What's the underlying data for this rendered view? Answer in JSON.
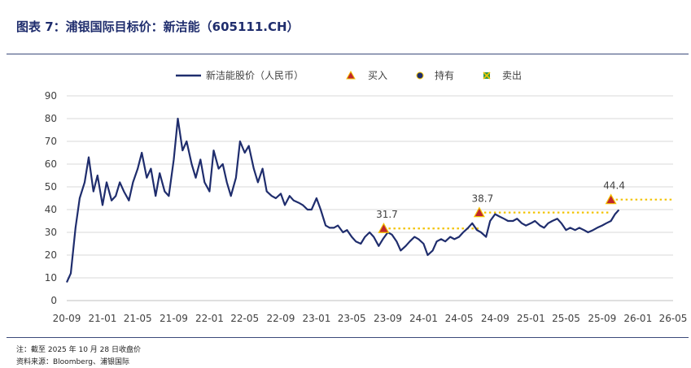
{
  "header": {
    "title": "图表 7：浦银国际目标价：新洁能（605111.CH）"
  },
  "footer": {
    "note": "注：截至 2025 年 10 月 28 日收盘价",
    "source": "资料来源：Bloomberg、浦银国际"
  },
  "colors": {
    "line": "#1f2d6d",
    "target": "#f2c200",
    "buy_fill": "#c0262d",
    "hold_fill": "#1f2d6d",
    "sell_fill": "#2e9a47",
    "marker_edge": "#f2c200",
    "grid": "#d9d9d9"
  },
  "chart_data": {
    "type": "line",
    "title": "",
    "xlabel": "",
    "ylabel": "",
    "ylim": [
      0,
      90
    ],
    "yticks": [
      "0",
      "10",
      "20",
      "30",
      "40",
      "50",
      "60",
      "70",
      "80",
      "90"
    ],
    "xticks": [
      "20-09",
      "21-01",
      "21-05",
      "21-09",
      "22-01",
      "22-05",
      "22-09",
      "23-01",
      "23-05",
      "23-09",
      "24-01",
      "24-05",
      "24-09",
      "25-01",
      "25-05",
      "25-09",
      "26-01",
      "26-05"
    ],
    "grid": true,
    "legend_position": "top",
    "legend": {
      "price": "新洁能股价（人民币）",
      "buy": "买入",
      "hold": "持有",
      "sell": "卖出"
    },
    "series": [
      {
        "name": "新洁能股价（人民币）",
        "x": [
          "2020-09-01",
          "2020-09-15",
          "2020-10-01",
          "2020-10-15",
          "2020-11-01",
          "2020-11-15",
          "2020-12-01",
          "2020-12-15",
          "2021-01-01",
          "2021-01-15",
          "2021-02-01",
          "2021-02-15",
          "2021-03-01",
          "2021-03-15",
          "2021-04-01",
          "2021-04-15",
          "2021-05-01",
          "2021-05-15",
          "2021-06-01",
          "2021-06-15",
          "2021-07-01",
          "2021-07-15",
          "2021-08-01",
          "2021-08-15",
          "2021-09-01",
          "2021-09-15",
          "2021-10-01",
          "2021-10-15",
          "2021-11-01",
          "2021-11-15",
          "2021-12-01",
          "2021-12-15",
          "2022-01-01",
          "2022-01-15",
          "2022-02-01",
          "2022-02-15",
          "2022-03-01",
          "2022-03-15",
          "2022-04-01",
          "2022-04-15",
          "2022-05-01",
          "2022-05-15",
          "2022-06-01",
          "2022-06-15",
          "2022-07-01",
          "2022-07-15",
          "2022-08-01",
          "2022-08-15",
          "2022-09-01",
          "2022-09-15",
          "2022-10-01",
          "2022-10-15",
          "2022-11-01",
          "2022-11-15",
          "2022-12-01",
          "2022-12-15",
          "2023-01-01",
          "2023-01-15",
          "2023-02-01",
          "2023-02-15",
          "2023-03-01",
          "2023-03-15",
          "2023-04-01",
          "2023-04-15",
          "2023-05-01",
          "2023-05-15",
          "2023-06-01",
          "2023-06-15",
          "2023-07-01",
          "2023-07-15",
          "2023-08-01",
          "2023-08-15",
          "2023-09-01",
          "2023-09-15",
          "2023-10-01",
          "2023-10-15",
          "2023-11-01",
          "2023-11-15",
          "2023-12-01",
          "2023-12-15",
          "2024-01-01",
          "2024-01-15",
          "2024-02-01",
          "2024-02-15",
          "2024-03-01",
          "2024-03-15",
          "2024-04-01",
          "2024-04-15",
          "2024-05-01",
          "2024-05-15",
          "2024-06-01",
          "2024-06-15",
          "2024-07-01",
          "2024-07-15",
          "2024-08-01",
          "2024-08-15",
          "2024-09-01",
          "2024-09-15",
          "2024-10-01",
          "2024-10-15",
          "2024-11-01",
          "2024-11-15",
          "2024-12-01",
          "2024-12-15",
          "2025-01-01",
          "2025-01-15",
          "2025-02-01",
          "2025-02-15",
          "2025-03-01",
          "2025-03-15",
          "2025-04-01",
          "2025-04-15",
          "2025-05-01",
          "2025-05-15",
          "2025-06-01",
          "2025-06-15",
          "2025-07-01",
          "2025-07-15",
          "2025-08-01",
          "2025-08-15",
          "2025-09-01",
          "2025-09-15",
          "2025-10-01",
          "2025-10-15",
          "2025-10-28"
        ],
        "values": [
          8,
          12,
          32,
          45,
          52,
          63,
          48,
          55,
          42,
          52,
          44,
          46,
          52,
          48,
          44,
          52,
          58,
          65,
          54,
          58,
          46,
          56,
          48,
          46,
          62,
          80,
          66,
          70,
          60,
          54,
          62,
          52,
          48,
          66,
          58,
          60,
          52,
          46,
          54,
          70,
          65,
          68,
          58,
          52,
          58,
          48,
          46,
          45,
          47,
          42,
          46,
          44,
          43,
          42,
          40,
          40,
          45,
          40,
          33,
          32,
          32,
          33,
          30,
          31,
          28,
          26,
          25,
          28,
          30,
          28,
          24,
          27,
          30,
          29,
          26,
          22,
          24,
          26,
          28,
          27,
          25,
          20,
          22,
          26,
          27,
          26,
          28,
          27,
          28,
          30,
          32,
          34,
          31,
          30,
          28,
          35,
          38,
          37,
          36,
          35,
          35,
          36,
          34,
          33,
          34,
          35,
          33,
          32,
          34,
          35,
          36,
          34,
          31,
          32,
          31,
          32,
          31,
          30,
          31,
          32,
          33,
          34,
          35,
          38,
          39.9
        ]
      },
      {
        "name": "买入",
        "type": "scatter",
        "x": [
          "2023-08-18",
          "2024-07-09",
          "2025-10-01"
        ],
        "values": [
          31.7,
          38.7,
          44.4
        ],
        "labels": [
          "31.7",
          "38.7",
          "44.4"
        ]
      }
    ],
    "target_lines": [
      {
        "x_from": "2023-08-18",
        "x_to": "2024-07-09",
        "value": 31.7
      },
      {
        "x_from": "2024-07-09",
        "x_to": "2025-10-01",
        "value": 38.7
      },
      {
        "x_from": "2025-10-01",
        "x_to": "2026-06-30",
        "value": 44.4
      }
    ]
  }
}
